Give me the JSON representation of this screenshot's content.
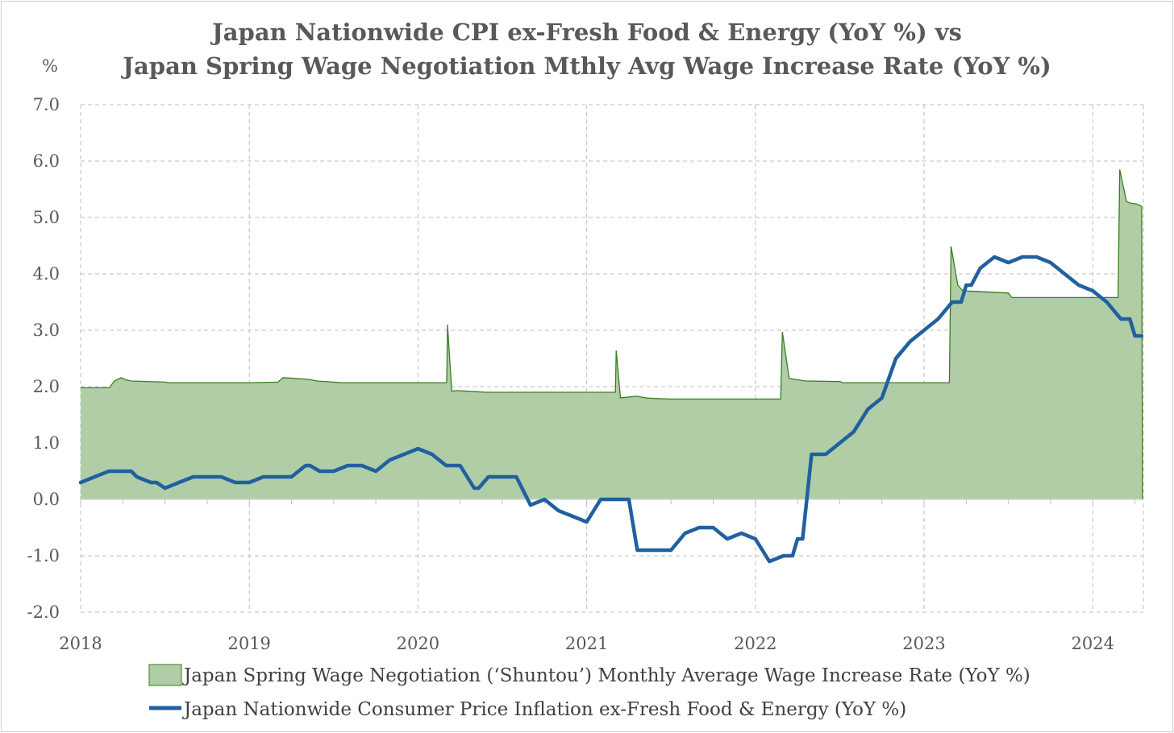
{
  "chart_data": {
    "type": "line",
    "title_lines": [
      "Japan Nationwide CPI ex-Fresh Food & Energy (YoY %) vs",
      "Japan Spring Wage Negotiation Mthly Avg Wage Increase Rate (YoY %)"
    ],
    "ylabel": "%",
    "ylim": [
      -2.0,
      7.0
    ],
    "yticks": [
      "7.0",
      "6.0",
      "5.0",
      "4.0",
      "3.0",
      "2.0",
      "1.0",
      "0.0",
      "-1.0",
      "-2.0"
    ],
    "ytick_values": [
      7,
      6,
      5,
      4,
      3,
      2,
      1,
      0,
      -1,
      -2
    ],
    "xlim": [
      2018.0,
      2024.3
    ],
    "xticks": [
      "2018",
      "2019",
      "2020",
      "2021",
      "2022",
      "2023",
      "2024"
    ],
    "xtick_values": [
      2018,
      2019,
      2020,
      2021,
      2022,
      2023,
      2024
    ],
    "grid": true,
    "legend_position": "bottom",
    "series": [
      {
        "name": "Japan Spring Wage Negotiation (‘Shuntou’) Monthly Average Wage Increase Rate (YoY %)",
        "type": "area",
        "fill": "#b0cda6",
        "stroke": "#3a7d22",
        "x": [
          2018.0,
          2018.17,
          2018.2,
          2018.24,
          2018.27,
          2018.3,
          2018.5,
          2018.52,
          2019.0,
          2019.17,
          2019.2,
          2019.35,
          2019.4,
          2019.5,
          2019.55,
          2020.0,
          2020.17,
          2020.175,
          2020.2,
          2020.23,
          2020.35,
          2020.4,
          2020.45,
          2021.0,
          2021.17,
          2021.175,
          2021.2,
          2021.23,
          2021.3,
          2021.35,
          2021.4,
          2021.5,
          2021.52,
          2022.0,
          2022.15,
          2022.16,
          2022.2,
          2022.23,
          2022.3,
          2022.5,
          2022.52,
          2023.0,
          2023.15,
          2023.16,
          2023.2,
          2023.23,
          2023.3,
          2023.5,
          2023.52,
          2024.0,
          2024.15,
          2024.16,
          2024.2,
          2024.23,
          2024.26,
          2024.29,
          2024.295
        ],
        "values": [
          1.98,
          1.98,
          2.1,
          2.16,
          2.12,
          2.1,
          2.08,
          2.07,
          2.07,
          2.08,
          2.16,
          2.13,
          2.1,
          2.08,
          2.07,
          2.07,
          2.07,
          3.1,
          1.92,
          1.93,
          1.91,
          1.9,
          1.9,
          1.9,
          1.9,
          2.64,
          1.8,
          1.81,
          1.83,
          1.8,
          1.79,
          1.78,
          1.78,
          1.78,
          1.78,
          2.97,
          2.15,
          2.13,
          2.1,
          2.09,
          2.07,
          2.07,
          2.07,
          4.49,
          3.8,
          3.7,
          3.69,
          3.66,
          3.58,
          3.58,
          3.58,
          5.85,
          5.28,
          5.25,
          5.24,
          5.2,
          0.0
        ]
      },
      {
        "name": "Japan Nationwide Consumer Price Inflation ex-Fresh Food & Energy (YoY %)",
        "type": "line",
        "stroke": "#2160a0",
        "x": [
          2018.0,
          2018.083,
          2018.167,
          2018.25,
          2018.3,
          2018.333,
          2018.417,
          2018.45,
          2018.5,
          2018.583,
          2018.667,
          2018.75,
          2018.833,
          2018.917,
          2019.0,
          2019.083,
          2019.167,
          2019.25,
          2019.333,
          2019.36,
          2019.417,
          2019.5,
          2019.583,
          2019.667,
          2019.75,
          2019.833,
          2019.917,
          2020.0,
          2020.083,
          2020.167,
          2020.25,
          2020.333,
          2020.36,
          2020.417,
          2020.5,
          2020.583,
          2020.667,
          2020.75,
          2020.833,
          2020.917,
          2021.0,
          2021.083,
          2021.167,
          2021.25,
          2021.3,
          2021.333,
          2021.417,
          2021.5,
          2021.583,
          2021.667,
          2021.75,
          2021.833,
          2021.917,
          2022.0,
          2022.083,
          2022.167,
          2022.22,
          2022.25,
          2022.28,
          2022.333,
          2022.417,
          2022.5,
          2022.583,
          2022.667,
          2022.75,
          2022.833,
          2022.917,
          2023.0,
          2023.083,
          2023.167,
          2023.22,
          2023.25,
          2023.28,
          2023.333,
          2023.417,
          2023.5,
          2023.583,
          2023.667,
          2023.75,
          2023.833,
          2023.917,
          2024.0,
          2024.083,
          2024.167,
          2024.22,
          2024.25,
          2024.29
        ],
        "values": [
          0.3,
          0.4,
          0.5,
          0.5,
          0.5,
          0.4,
          0.3,
          0.3,
          0.2,
          0.3,
          0.4,
          0.4,
          0.4,
          0.3,
          0.3,
          0.4,
          0.4,
          0.4,
          0.6,
          0.6,
          0.5,
          0.5,
          0.6,
          0.6,
          0.5,
          0.7,
          0.8,
          0.9,
          0.8,
          0.6,
          0.6,
          0.2,
          0.2,
          0.4,
          0.4,
          0.4,
          -0.1,
          0.0,
          -0.2,
          -0.3,
          -0.4,
          0.0,
          0.0,
          0.0,
          -0.9,
          -0.9,
          -0.9,
          -0.9,
          -0.6,
          -0.5,
          -0.5,
          -0.7,
          -0.6,
          -0.7,
          -1.1,
          -1.0,
          -1.0,
          -0.7,
          -0.7,
          0.8,
          0.8,
          1.0,
          1.2,
          1.6,
          1.8,
          2.5,
          2.8,
          3.0,
          3.2,
          3.5,
          3.5,
          3.8,
          3.8,
          4.1,
          4.3,
          4.2,
          4.3,
          4.3,
          4.2,
          4.0,
          3.8,
          3.7,
          3.5,
          3.2,
          3.2,
          2.9,
          2.9
        ]
      }
    ]
  },
  "colors": {
    "area_fill": "#b0cda6",
    "area_stroke": "#3a7d22",
    "line": "#2160a0",
    "grid": "#bfbfbf",
    "text": "#595959"
  }
}
